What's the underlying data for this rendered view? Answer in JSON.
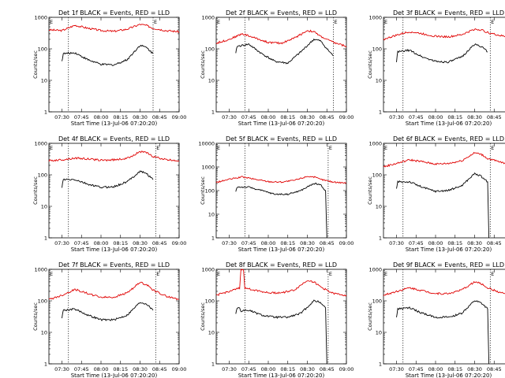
{
  "chart_data": [
    {
      "type": "line",
      "title": "Det 1f BLACK = Events, RED = LLD",
      "xlabel": "Start Time (13-Jul-06 07:20:20)",
      "ylabel": "Counts/sec",
      "xticks": [
        "07:30",
        "07:45",
        "08:00",
        "08:15",
        "08:30",
        "08:45",
        "09:00"
      ],
      "yticks": [
        "1",
        "10",
        "100",
        "1000"
      ],
      "ylim": [
        1,
        1000
      ],
      "xlim": [
        "07:20",
        "09:00"
      ],
      "vlines": [
        "07:35",
        "08:40"
      ],
      "corner_marks": [
        "E",
        "E"
      ],
      "series": [
        {
          "color": "#e00000",
          "x": [
            "07:20",
            "07:30",
            "07:40",
            "07:50",
            "08:00",
            "08:10",
            "08:20",
            "08:30",
            "08:35",
            "08:40",
            "08:50",
            "09:00"
          ],
          "y": [
            400,
            380,
            560,
            450,
            380,
            360,
            420,
            600,
            550,
            450,
            380,
            350
          ]
        },
        {
          "color": "#000000",
          "x": [
            "07:30",
            "07:31",
            "07:40",
            "07:50",
            "08:00",
            "08:10",
            "08:20",
            "08:30",
            "08:35",
            "08:40"
          ],
          "y": [
            40,
            70,
            75,
            45,
            32,
            31,
            45,
            130,
            110,
            70
          ]
        }
      ]
    },
    {
      "type": "line",
      "title": "Det 2f BLACK = Events, RED = LLD",
      "xlabel": "Start Time (13-Jul-06 07:20:20)",
      "ylabel": "Counts/sec",
      "xticks": [
        "07:30",
        "07:45",
        "08:00",
        "08:15",
        "08:30",
        "08:45",
        "09:00"
      ],
      "yticks": [
        "1",
        "10",
        "100",
        "1000"
      ],
      "ylim": [
        1,
        1000
      ],
      "xlim": [
        "07:20",
        "09:00"
      ],
      "vlines": [
        "07:42",
        "08:50"
      ],
      "corner_marks": [
        "E",
        "E"
      ],
      "series": [
        {
          "color": "#e00000",
          "x": [
            "07:20",
            "07:30",
            "07:40",
            "07:50",
            "08:00",
            "08:10",
            "08:20",
            "08:30",
            "08:35",
            "08:40",
            "08:50",
            "09:00"
          ],
          "y": [
            150,
            200,
            300,
            220,
            160,
            150,
            220,
            380,
            350,
            250,
            160,
            120
          ]
        },
        {
          "color": "#000000",
          "x": [
            "07:35",
            "07:36",
            "07:45",
            "07:55",
            "08:05",
            "08:15",
            "08:25",
            "08:35",
            "08:40",
            "08:45",
            "08:50"
          ],
          "y": [
            70,
            120,
            140,
            70,
            40,
            35,
            80,
            200,
            180,
            100,
            60
          ]
        }
      ]
    },
    {
      "type": "line",
      "title": "Det 3f BLACK = Events, RED = LLD",
      "xlabel": "Start Time (13-Jul-06 07:20:20)",
      "ylabel": "Counts/sec",
      "xticks": [
        "07:30",
        "07:45",
        "08:00",
        "08:15",
        "08:30",
        "08:45",
        "09:00"
      ],
      "yticks": [
        "1",
        "10",
        "100",
        "1000"
      ],
      "ylim": [
        1,
        1000
      ],
      "xlim": [
        "07:20",
        "09:00"
      ],
      "vlines": [
        "07:35",
        "08:42"
      ],
      "corner_marks": [
        "E",
        "E"
      ],
      "series": [
        {
          "color": "#e00000",
          "x": [
            "07:20",
            "07:30",
            "07:40",
            "07:50",
            "08:00",
            "08:10",
            "08:20",
            "08:30",
            "08:35",
            "08:40",
            "08:50",
            "09:00"
          ],
          "y": [
            200,
            270,
            350,
            300,
            250,
            240,
            280,
            420,
            400,
            330,
            260,
            230
          ]
        },
        {
          "color": "#000000",
          "x": [
            "07:30",
            "07:31",
            "07:40",
            "07:50",
            "08:00",
            "08:10",
            "08:20",
            "08:30",
            "08:35",
            "08:40"
          ],
          "y": [
            40,
            80,
            90,
            55,
            40,
            38,
            55,
            140,
            120,
            80
          ]
        }
      ]
    },
    {
      "type": "line",
      "title": "Det 4f BLACK = Events, RED = LLD",
      "xlabel": "Start Time (13-Jul-06 07:20:20)",
      "ylabel": "Counts/sec",
      "xticks": [
        "07:30",
        "07:45",
        "08:00",
        "08:15",
        "08:30",
        "08:45",
        "09:00"
      ],
      "yticks": [
        "1",
        "10",
        "100",
        "1000"
      ],
      "ylim": [
        1,
        1000
      ],
      "xlim": [
        "07:20",
        "09:00"
      ],
      "vlines": [
        "07:35",
        "08:42"
      ],
      "corner_marks": [
        "E",
        "E"
      ],
      "series": [
        {
          "color": "#e00000",
          "x": [
            "07:20",
            "07:30",
            "07:40",
            "07:50",
            "08:00",
            "08:10",
            "08:20",
            "08:30",
            "08:35",
            "08:40",
            "08:50",
            "09:00"
          ],
          "y": [
            280,
            300,
            340,
            320,
            290,
            300,
            330,
            550,
            500,
            380,
            300,
            280
          ]
        },
        {
          "color": "#000000",
          "x": [
            "07:30",
            "07:31",
            "07:40",
            "07:50",
            "08:00",
            "08:10",
            "08:20",
            "08:30",
            "08:35",
            "08:40"
          ],
          "y": [
            40,
            70,
            70,
            50,
            40,
            42,
            60,
            130,
            110,
            70
          ]
        }
      ]
    },
    {
      "type": "line",
      "title": "Det 5f BLACK = Events, RED = LLD",
      "xlabel": "Start Time (13-Jul-06 07:20:20)",
      "ylabel": "Counts/sec",
      "xticks": [
        "07:30",
        "07:45",
        "08:00",
        "08:15",
        "08:30",
        "08:45",
        "09:00"
      ],
      "yticks": [
        "1",
        "10",
        "100",
        "1000"
      ],
      "ylim": [
        1,
        10000
      ],
      "xlim": [
        "07:20",
        "09:00"
      ],
      "vlines": [
        "07:42",
        "08:46"
      ],
      "corner_marks": [
        "E",
        "E"
      ],
      "series": [
        {
          "color": "#e00000",
          "x": [
            "07:20",
            "07:30",
            "07:40",
            "07:50",
            "08:00",
            "08:10",
            "08:20",
            "08:30",
            "08:35",
            "08:40",
            "08:50",
            "09:00"
          ],
          "y": [
            220,
            300,
            380,
            300,
            240,
            230,
            270,
            400,
            380,
            300,
            230,
            210
          ]
        },
        {
          "color": "#000000",
          "x": [
            "07:35",
            "07:36",
            "07:45",
            "07:55",
            "08:05",
            "08:15",
            "08:25",
            "08:35",
            "08:40",
            "08:44",
            "08:45"
          ],
          "y": [
            90,
            140,
            140,
            100,
            70,
            70,
            100,
            200,
            180,
            100,
            1
          ]
        }
      ]
    },
    {
      "type": "line",
      "title": "Det 6f BLACK = Events, RED = LLD",
      "xlabel": "Start Time (13-Jul-06 07:20:20)",
      "ylabel": "Counts/sec",
      "xticks": [
        "07:30",
        "07:45",
        "08:00",
        "08:15",
        "08:30",
        "08:45",
        "09:00"
      ],
      "yticks": [
        "1",
        "10",
        "100",
        "1000"
      ],
      "ylim": [
        1,
        1000
      ],
      "xlim": [
        "07:20",
        "09:00"
      ],
      "vlines": [
        "07:35",
        "08:42"
      ],
      "corner_marks": [
        "E",
        "E"
      ],
      "series": [
        {
          "color": "#e00000",
          "x": [
            "07:20",
            "07:30",
            "07:40",
            "07:50",
            "08:00",
            "08:10",
            "08:20",
            "08:30",
            "08:35",
            "08:40",
            "08:50",
            "09:00"
          ],
          "y": [
            180,
            230,
            300,
            260,
            220,
            230,
            280,
            500,
            450,
            330,
            250,
            220
          ]
        },
        {
          "color": "#000000",
          "x": [
            "07:30",
            "07:31",
            "07:40",
            "07:50",
            "08:00",
            "08:10",
            "08:20",
            "08:30",
            "08:35",
            "08:40",
            "08:41"
          ],
          "y": [
            35,
            60,
            60,
            40,
            30,
            32,
            45,
            110,
            90,
            60,
            1
          ]
        }
      ]
    },
    {
      "type": "line",
      "title": "Det 7f BLACK = Events, RED = LLD",
      "xlabel": "Start Time (13-Jul-06 07:20:20)",
      "ylabel": "Counts/sec",
      "xticks": [
        "07:30",
        "07:45",
        "08:00",
        "08:15",
        "08:30",
        "08:45",
        "09:00"
      ],
      "yticks": [
        "1",
        "10",
        "100",
        "1000"
      ],
      "ylim": [
        1,
        1000
      ],
      "xlim": [
        "07:20",
        "09:00"
      ],
      "vlines": [
        "07:35",
        "08:42"
      ],
      "corner_marks": [
        "E",
        "E"
      ],
      "series": [
        {
          "color": "#e00000",
          "x": [
            "07:20",
            "07:30",
            "07:40",
            "07:50",
            "08:00",
            "08:10",
            "08:20",
            "08:30",
            "08:35",
            "08:40",
            "08:50",
            "09:00"
          ],
          "y": [
            110,
            150,
            230,
            170,
            130,
            130,
            180,
            380,
            330,
            220,
            140,
            110
          ]
        },
        {
          "color": "#000000",
          "x": [
            "07:30",
            "07:31",
            "07:40",
            "07:50",
            "08:00",
            "08:10",
            "08:20",
            "08:30",
            "08:35",
            "08:40"
          ],
          "y": [
            30,
            50,
            55,
            35,
            25,
            25,
            35,
            90,
            80,
            50
          ]
        }
      ]
    },
    {
      "type": "line",
      "title": "Det 8f BLACK = Events, RED = LLD",
      "xlabel": "Start Time (13-Jul-06 07:20:20)",
      "ylabel": "Counts/sec",
      "xticks": [
        "07:30",
        "07:45",
        "08:00",
        "08:15",
        "08:30",
        "08:45",
        "09:00"
      ],
      "yticks": [
        "1",
        "10",
        "100",
        "1000"
      ],
      "ylim": [
        1,
        1000
      ],
      "xlim": [
        "07:20",
        "09:00"
      ],
      "vlines": [
        "07:42",
        "08:46"
      ],
      "corner_marks": [
        "E",
        "E"
      ],
      "series": [
        {
          "color": "#e00000",
          "x": [
            "07:20",
            "07:30",
            "07:38",
            "07:39",
            "07:41",
            "07:42",
            "07:50",
            "08:00",
            "08:10",
            "08:20",
            "08:30",
            "08:35",
            "08:40",
            "08:50",
            "09:00"
          ],
          "y": [
            150,
            200,
            250,
            1000,
            1000,
            250,
            220,
            180,
            180,
            220,
            450,
            400,
            280,
            170,
            150
          ]
        },
        {
          "color": "#000000",
          "x": [
            "07:35",
            "07:36",
            "07:38",
            "07:39",
            "07:41",
            "07:45",
            "07:55",
            "08:05",
            "08:15",
            "08:25",
            "08:35",
            "08:40",
            "08:44",
            "08:45"
          ],
          "y": [
            40,
            60,
            60,
            45,
            50,
            50,
            35,
            30,
            30,
            40,
            100,
            90,
            60,
            1
          ]
        }
      ]
    },
    {
      "type": "line",
      "title": "Det 9f BLACK = Events, RED = LLD",
      "xlabel": "Start Time (13-Jul-06 07:20:20)",
      "ylabel": "Counts/sec",
      "xticks": [
        "07:30",
        "07:45",
        "08:00",
        "08:15",
        "08:30",
        "08:45",
        "09:00"
      ],
      "yticks": [
        "1",
        "10",
        "100",
        "1000"
      ],
      "ylim": [
        1,
        1000
      ],
      "xlim": [
        "07:20",
        "09:00"
      ],
      "vlines": [
        "07:35",
        "08:42"
      ],
      "corner_marks": [
        "E",
        "E"
      ],
      "series": [
        {
          "color": "#e00000",
          "x": [
            "07:20",
            "07:30",
            "07:40",
            "07:50",
            "08:00",
            "08:10",
            "08:20",
            "08:30",
            "08:35",
            "08:40",
            "08:50",
            "09:00"
          ],
          "y": [
            150,
            200,
            260,
            210,
            170,
            170,
            220,
            400,
            350,
            260,
            180,
            150
          ]
        },
        {
          "color": "#000000",
          "x": [
            "07:30",
            "07:31",
            "07:40",
            "07:50",
            "08:00",
            "08:10",
            "08:20",
            "08:30",
            "08:35",
            "08:40",
            "08:41"
          ],
          "y": [
            30,
            55,
            60,
            40,
            30,
            30,
            40,
            100,
            85,
            55,
            1
          ]
        }
      ]
    }
  ]
}
